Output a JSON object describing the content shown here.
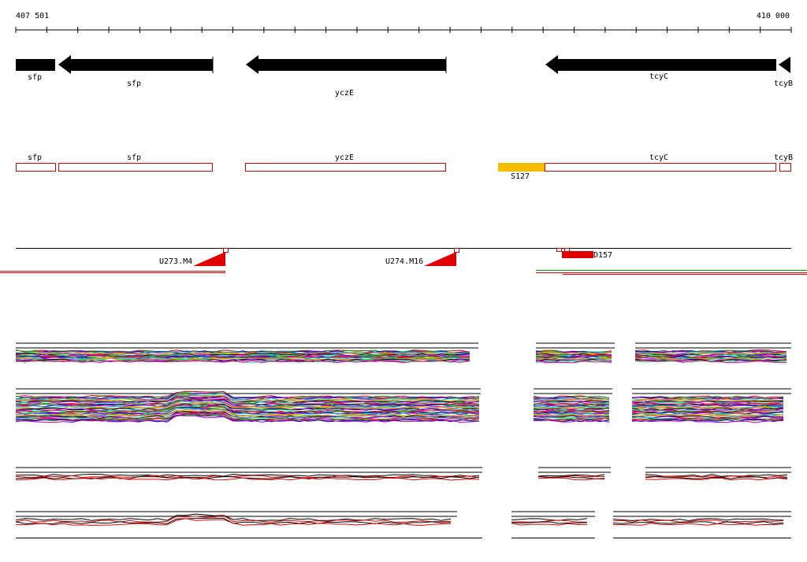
{
  "ruler": {
    "start": "407 501",
    "end": "410 000"
  },
  "gene_track": [
    {
      "label": "sfp"
    },
    {
      "label": "sfp"
    },
    {
      "label": "yczE"
    },
    {
      "label": "tcyC"
    },
    {
      "label": "tcyB"
    }
  ],
  "feature_track": [
    {
      "label": "sfp"
    },
    {
      "label": "sfp"
    },
    {
      "label": "yczE"
    },
    {
      "label": "tcyC"
    },
    {
      "label": "tcyB"
    },
    {
      "label": "S127"
    }
  ],
  "markers": [
    {
      "label": "U273.M4"
    },
    {
      "label": "U274.M16"
    },
    {
      "label": "D157"
    }
  ]
}
